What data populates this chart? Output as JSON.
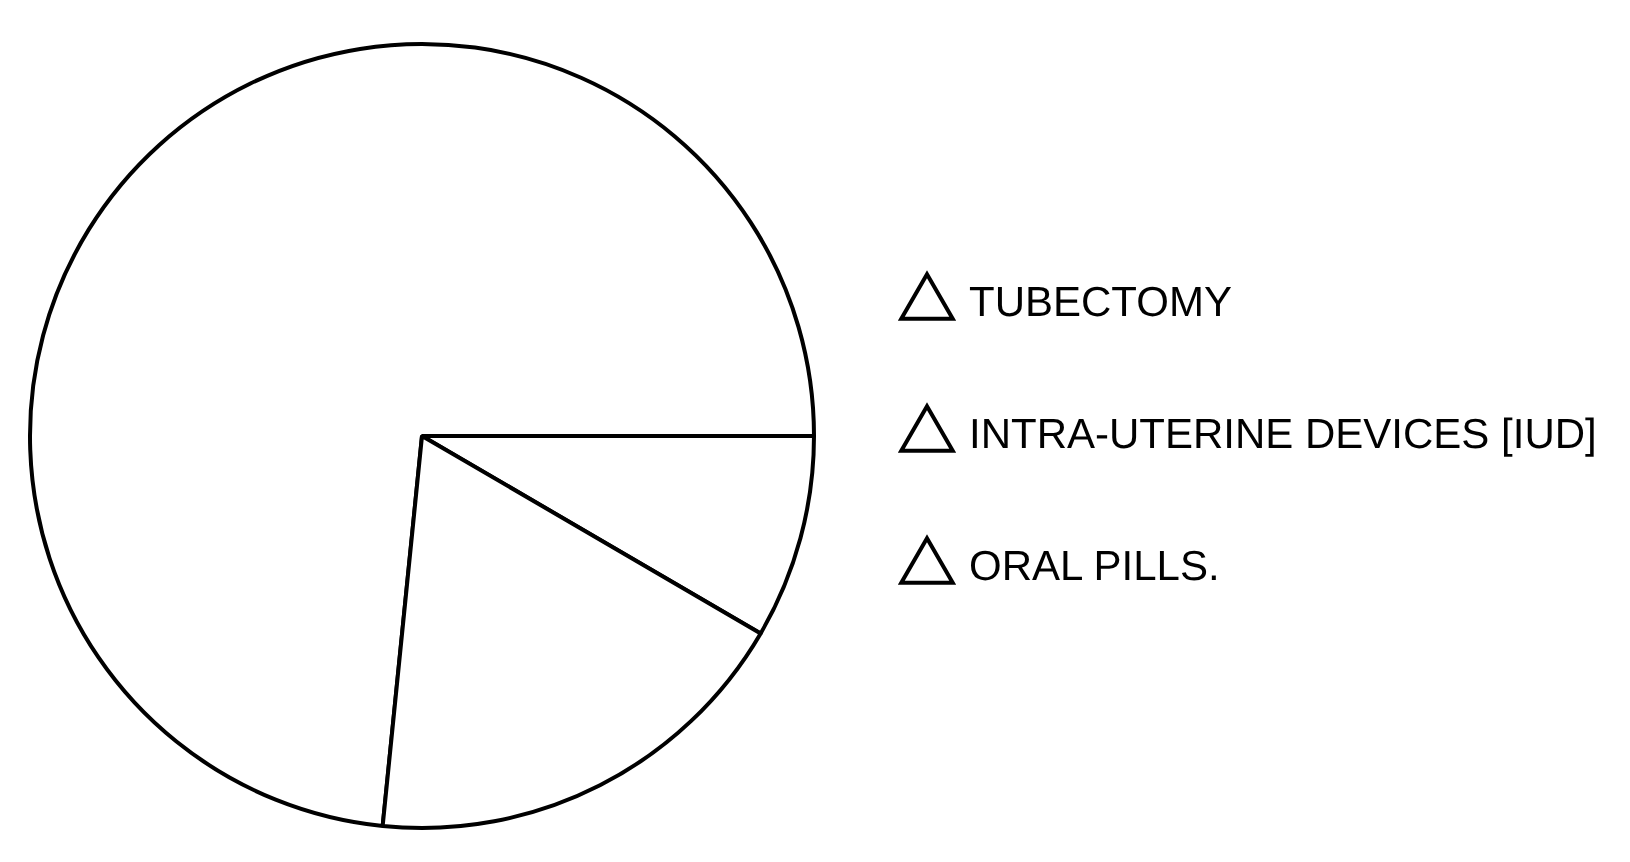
{
  "chart_data": {
    "type": "pie",
    "categories": [
      "TUBECTOMY",
      "INTRA-UTERINE DEVICES [IUD]",
      "ORAL PILLS."
    ],
    "values": [
      73.4,
      8.4,
      18.2
    ],
    "colors": [
      "#ffffff",
      "#ffffff",
      "#ffffff"
    ],
    "legend": "right"
  }
}
